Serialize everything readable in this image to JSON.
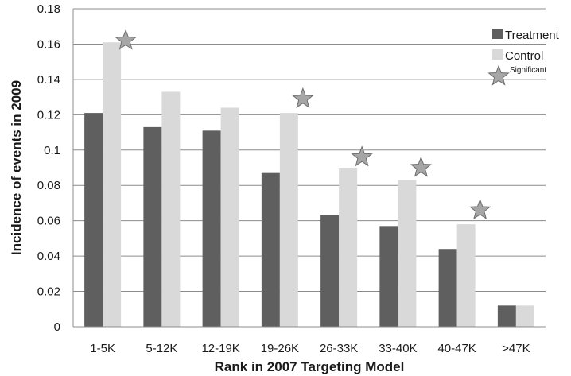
{
  "chart_data": {
    "type": "bar",
    "xlabel": "Rank in 2007 Targeting Model",
    "ylabel": "Incidence of events in 2009",
    "ylim": [
      0,
      0.18
    ],
    "yticks": [
      "0",
      "0.02",
      "0.04",
      "0.06",
      "0.08",
      "0.1",
      "0.12",
      "0.14",
      "0.16",
      "0.18"
    ],
    "grid": "horizontal",
    "legend_position": "top-right",
    "categories": [
      "1-5K",
      "5-12K",
      "12-19K",
      "19-26K",
      "26-33K",
      "33-40K",
      "40-47K",
      ">47K"
    ],
    "series": [
      {
        "name": "Treatment",
        "color": "#5f5f5f",
        "values": [
          0.121,
          0.113,
          0.111,
          0.087,
          0.063,
          0.057,
          0.044,
          0.012
        ]
      },
      {
        "name": "Control",
        "color": "#d9d9d9",
        "values": [
          0.161,
          0.133,
          0.124,
          0.121,
          0.09,
          0.083,
          0.058,
          0.012
        ]
      }
    ],
    "significance": {
      "label": "Significant",
      "star_color": "#a6a6a6",
      "categories": [
        "1-5K",
        "19-26K",
        "26-33K",
        "33-40K",
        "40-47K"
      ],
      "y_values": [
        0.162,
        0.129,
        0.096,
        0.09,
        0.066
      ]
    }
  }
}
